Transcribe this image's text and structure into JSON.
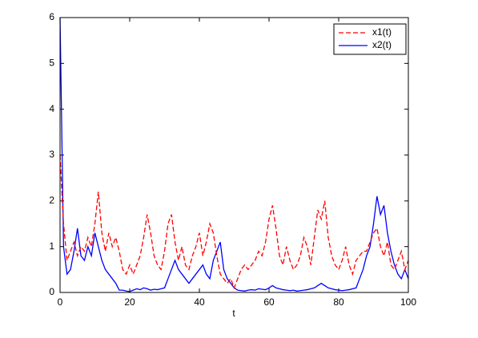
{
  "chart_data": {
    "type": "line",
    "x_label": "t",
    "x": [
      0,
      1,
      2,
      3,
      4,
      5,
      6,
      7,
      8,
      9,
      10,
      11,
      12,
      13,
      14,
      15,
      16,
      17,
      18,
      19,
      20,
      21,
      22,
      23,
      24,
      25,
      26,
      27,
      28,
      29,
      30,
      31,
      32,
      33,
      34,
      35,
      36,
      37,
      38,
      39,
      40,
      41,
      42,
      43,
      44,
      45,
      46,
      47,
      48,
      49,
      50,
      51,
      52,
      53,
      54,
      55,
      56,
      57,
      58,
      59,
      60,
      61,
      62,
      63,
      64,
      65,
      66,
      67,
      68,
      69,
      70,
      71,
      72,
      73,
      74,
      75,
      76,
      77,
      78,
      79,
      80,
      81,
      82,
      83,
      84,
      85,
      86,
      87,
      88,
      89,
      90,
      91,
      92,
      93,
      94,
      95,
      96,
      97,
      98,
      99,
      100
    ],
    "series": [
      {
        "name": "x1(t)",
        "color": "#ff0000",
        "linestyle": "dashed",
        "values": [
          3.0,
          1.5,
          0.7,
          0.9,
          1.1,
          0.8,
          1.0,
          0.9,
          1.2,
          1.0,
          1.5,
          2.2,
          1.3,
          0.9,
          1.3,
          1.0,
          1.2,
          0.9,
          0.5,
          0.4,
          0.6,
          0.4,
          0.6,
          0.8,
          1.2,
          1.7,
          1.3,
          0.8,
          0.6,
          0.5,
          0.9,
          1.5,
          1.7,
          1.1,
          0.7,
          1.0,
          0.6,
          0.5,
          0.8,
          1.0,
          1.3,
          0.8,
          1.1,
          1.5,
          1.3,
          0.8,
          0.4,
          0.3,
          0.2,
          0.3,
          0.1,
          0.3,
          0.5,
          0.6,
          0.5,
          0.6,
          0.7,
          0.9,
          0.8,
          1.1,
          1.6,
          1.9,
          1.4,
          0.8,
          0.6,
          1.0,
          0.7,
          0.5,
          0.6,
          0.8,
          1.2,
          1.0,
          0.6,
          1.2,
          1.8,
          1.6,
          2.0,
          1.2,
          0.8,
          0.6,
          0.5,
          0.7,
          1.0,
          0.6,
          0.4,
          0.7,
          0.8,
          0.9,
          0.9,
          1.1,
          1.3,
          1.4,
          1.0,
          0.8,
          1.1,
          0.6,
          0.5,
          0.7,
          0.9,
          0.5,
          0.7
        ]
      },
      {
        "name": "x2(t)",
        "color": "#0000ff",
        "linestyle": "solid",
        "values": [
          6.0,
          1.0,
          0.4,
          0.5,
          0.9,
          1.4,
          0.8,
          0.7,
          1.0,
          0.8,
          1.3,
          1.0,
          0.7,
          0.5,
          0.4,
          0.3,
          0.2,
          0.05,
          0.05,
          0.03,
          0.02,
          0.05,
          0.08,
          0.06,
          0.1,
          0.08,
          0.05,
          0.07,
          0.06,
          0.08,
          0.1,
          0.3,
          0.5,
          0.7,
          0.5,
          0.4,
          0.3,
          0.2,
          0.3,
          0.4,
          0.5,
          0.6,
          0.4,
          0.3,
          0.7,
          0.9,
          1.1,
          0.5,
          0.3,
          0.2,
          0.1,
          0.05,
          0.04,
          0.03,
          0.05,
          0.06,
          0.05,
          0.08,
          0.07,
          0.06,
          0.1,
          0.15,
          0.1,
          0.08,
          0.06,
          0.05,
          0.04,
          0.05,
          0.03,
          0.04,
          0.05,
          0.06,
          0.08,
          0.1,
          0.15,
          0.2,
          0.15,
          0.1,
          0.08,
          0.06,
          0.05,
          0.04,
          0.05,
          0.06,
          0.08,
          0.1,
          0.3,
          0.5,
          0.8,
          1.0,
          1.5,
          2.1,
          1.7,
          1.9,
          1.3,
          0.9,
          0.6,
          0.4,
          0.3,
          0.5,
          0.3
        ]
      }
    ],
    "xlim": [
      0,
      100
    ],
    "xticks": [
      0,
      20,
      40,
      60,
      80,
      100
    ],
    "ylim": [
      0,
      6
    ],
    "yticks": [
      0,
      1,
      2,
      3,
      4,
      5,
      6
    ],
    "legend": "northeast"
  }
}
